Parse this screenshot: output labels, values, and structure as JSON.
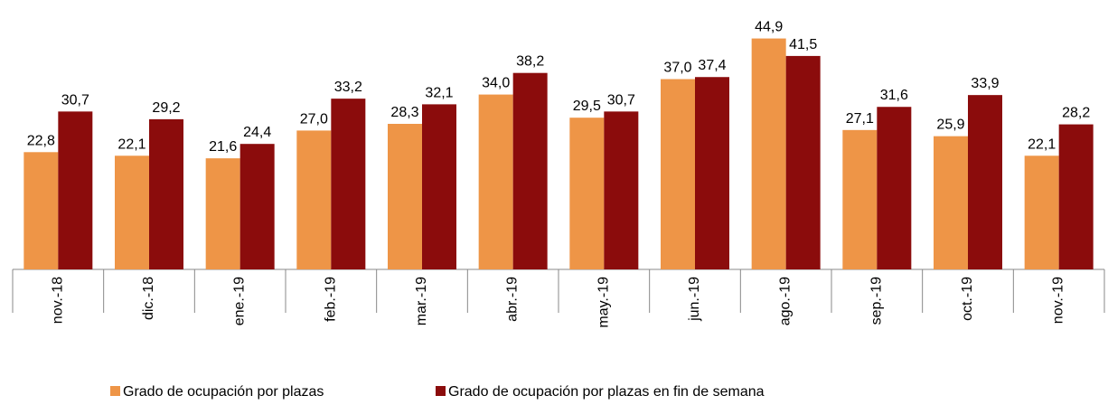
{
  "chart_data": {
    "type": "bar",
    "categories": [
      "nov.-18",
      "dic.-18",
      "ene.-19",
      "feb.-19",
      "mar.-19",
      "abr.-19",
      "may.-19",
      "jun.-19",
      "ago.-19",
      "sep.-19",
      "oct.-19",
      "nov.-19"
    ],
    "series": [
      {
        "name": "Grado de ocupación por plazas",
        "color": "#ee9547",
        "values": [
          22.8,
          22.1,
          21.6,
          27.0,
          28.3,
          34.0,
          29.5,
          37.0,
          44.9,
          27.1,
          25.9,
          22.1
        ],
        "value_labels": [
          "22,8",
          "22,1",
          "21,6",
          "27,0",
          "28,3",
          "34,0",
          "29,5",
          "37,0",
          "44,9",
          "27,1",
          "25,9",
          "22,1"
        ]
      },
      {
        "name": "Grado de ocupación por plazas en fin de semana",
        "color": "#8b0c0c",
        "values": [
          30.7,
          29.2,
          24.4,
          33.2,
          32.1,
          38.2,
          30.7,
          37.4,
          41.5,
          31.6,
          33.9,
          28.2
        ],
        "value_labels": [
          "30,7",
          "29,2",
          "24,4",
          "33,2",
          "32,1",
          "38,2",
          "30,7",
          "37,4",
          "41,5",
          "31,6",
          "33,9",
          "28,2"
        ]
      }
    ],
    "ylim": [
      0,
      45
    ]
  }
}
